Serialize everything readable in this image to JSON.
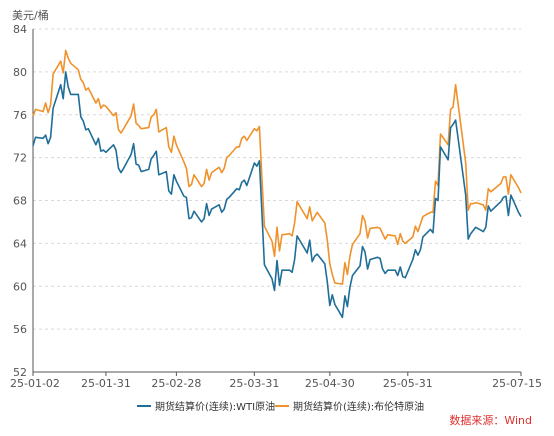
{
  "chart_data": {
    "type": "line",
    "unit_label": "美元/桶",
    "ylim": [
      52,
      84
    ],
    "y_ticks": [
      "84",
      "80",
      "76",
      "72",
      "68",
      "64",
      "60",
      "56",
      "52"
    ],
    "x_ticks": [
      "25-01-02",
      "25-01-31",
      "25-02-28",
      "25-03-31",
      "25-04-30",
      "25-05-31",
      "25-07-15"
    ],
    "xlim": [
      "2025-01-02",
      "2025-07-15"
    ],
    "grid": "horizontal-dashed",
    "legend_position": "bottom",
    "source": "数据来源：Wind",
    "series": [
      {
        "name": "期货结算价(连续):WTI原油",
        "color": "#1f6e99",
        "points": [
          [
            "2025-01-02",
            73.1
          ],
          [
            "2025-01-03",
            73.9
          ],
          [
            "2025-01-06",
            73.8
          ],
          [
            "2025-01-07",
            74.1
          ],
          [
            "2025-01-08",
            73.3
          ],
          [
            "2025-01-09",
            73.9
          ],
          [
            "2025-01-10",
            76.6
          ],
          [
            "2025-01-13",
            78.8
          ],
          [
            "2025-01-14",
            77.5
          ],
          [
            "2025-01-15",
            80.0
          ],
          [
            "2025-01-16",
            78.6
          ],
          [
            "2025-01-17",
            77.9
          ],
          [
            "2025-01-20",
            77.9
          ],
          [
            "2025-01-21",
            75.8
          ],
          [
            "2025-01-22",
            75.4
          ],
          [
            "2025-01-23",
            74.6
          ],
          [
            "2025-01-24",
            74.7
          ],
          [
            "2025-01-27",
            73.2
          ],
          [
            "2025-01-28",
            73.8
          ],
          [
            "2025-01-29",
            72.6
          ],
          [
            "2025-01-30",
            72.7
          ],
          [
            "2025-01-31",
            72.5
          ],
          [
            "2025-02-03",
            73.2
          ],
          [
            "2025-02-04",
            72.7
          ],
          [
            "2025-02-05",
            71.0
          ],
          [
            "2025-02-06",
            70.6
          ],
          [
            "2025-02-07",
            71.0
          ],
          [
            "2025-02-10",
            72.3
          ],
          [
            "2025-02-11",
            73.3
          ],
          [
            "2025-02-12",
            71.4
          ],
          [
            "2025-02-13",
            71.3
          ],
          [
            "2025-02-14",
            70.7
          ],
          [
            "2025-02-17",
            70.9
          ],
          [
            "2025-02-18",
            71.9
          ],
          [
            "2025-02-19",
            72.2
          ],
          [
            "2025-02-20",
            72.6
          ],
          [
            "2025-02-21",
            70.4
          ],
          [
            "2025-02-24",
            70.7
          ],
          [
            "2025-02-25",
            68.9
          ],
          [
            "2025-02-26",
            68.6
          ],
          [
            "2025-02-27",
            70.4
          ],
          [
            "2025-02-28",
            69.8
          ],
          [
            "2025-03-03",
            68.4
          ],
          [
            "2025-03-04",
            68.3
          ],
          [
            "2025-03-05",
            66.3
          ],
          [
            "2025-03-06",
            66.4
          ],
          [
            "2025-03-07",
            67.0
          ],
          [
            "2025-03-10",
            66.0
          ],
          [
            "2025-03-11",
            66.3
          ],
          [
            "2025-03-12",
            67.7
          ],
          [
            "2025-03-13",
            66.6
          ],
          [
            "2025-03-14",
            67.2
          ],
          [
            "2025-03-17",
            67.6
          ],
          [
            "2025-03-18",
            66.9
          ],
          [
            "2025-03-19",
            67.2
          ],
          [
            "2025-03-20",
            68.1
          ],
          [
            "2025-03-21",
            68.3
          ],
          [
            "2025-03-24",
            69.1
          ],
          [
            "2025-03-25",
            69.0
          ],
          [
            "2025-03-26",
            69.7
          ],
          [
            "2025-03-27",
            69.9
          ],
          [
            "2025-03-28",
            69.4
          ],
          [
            "2025-03-31",
            71.5
          ],
          [
            "2025-04-01",
            71.2
          ],
          [
            "2025-04-02",
            71.7
          ],
          [
            "2025-04-03",
            66.9
          ],
          [
            "2025-04-04",
            62.0
          ],
          [
            "2025-04-07",
            60.7
          ],
          [
            "2025-04-08",
            59.6
          ],
          [
            "2025-04-09",
            62.4
          ],
          [
            "2025-04-10",
            60.1
          ],
          [
            "2025-04-11",
            61.5
          ],
          [
            "2025-04-14",
            61.5
          ],
          [
            "2025-04-15",
            61.3
          ],
          [
            "2025-04-16",
            62.5
          ],
          [
            "2025-04-17",
            64.7
          ],
          [
            "2025-04-21",
            63.1
          ],
          [
            "2025-04-22",
            64.3
          ],
          [
            "2025-04-23",
            62.3
          ],
          [
            "2025-04-24",
            62.8
          ],
          [
            "2025-04-25",
            63.0
          ],
          [
            "2025-04-28",
            62.1
          ],
          [
            "2025-04-29",
            60.4
          ],
          [
            "2025-04-30",
            58.2
          ],
          [
            "2025-05-01",
            59.2
          ],
          [
            "2025-05-02",
            58.3
          ],
          [
            "2025-05-05",
            57.1
          ],
          [
            "2025-05-06",
            59.1
          ],
          [
            "2025-05-07",
            58.1
          ],
          [
            "2025-05-08",
            59.9
          ],
          [
            "2025-05-09",
            61.0
          ],
          [
            "2025-05-12",
            61.9
          ],
          [
            "2025-05-13",
            63.7
          ],
          [
            "2025-05-14",
            63.2
          ],
          [
            "2025-05-15",
            61.6
          ],
          [
            "2025-05-16",
            62.5
          ],
          [
            "2025-05-19",
            62.7
          ],
          [
            "2025-05-20",
            62.6
          ],
          [
            "2025-05-21",
            61.6
          ],
          [
            "2025-05-22",
            61.2
          ],
          [
            "2025-05-23",
            61.5
          ],
          [
            "2025-05-26",
            61.5
          ],
          [
            "2025-05-27",
            61.0
          ],
          [
            "2025-05-28",
            61.8
          ],
          [
            "2025-05-29",
            60.9
          ],
          [
            "2025-05-30",
            60.8
          ],
          [
            "2025-06-02",
            62.5
          ],
          [
            "2025-06-03",
            63.4
          ],
          [
            "2025-06-04",
            62.9
          ],
          [
            "2025-06-05",
            63.4
          ],
          [
            "2025-06-06",
            64.6
          ],
          [
            "2025-06-09",
            65.3
          ],
          [
            "2025-06-10",
            65.0
          ],
          [
            "2025-06-11",
            68.2
          ],
          [
            "2025-06-12",
            68.0
          ],
          [
            "2025-06-13",
            73.0
          ],
          [
            "2025-06-16",
            71.8
          ],
          [
            "2025-06-17",
            74.8
          ],
          [
            "2025-06-18",
            75.1
          ],
          [
            "2025-06-19",
            75.5
          ],
          [
            "2025-06-20",
            73.8
          ],
          [
            "2025-06-23",
            68.5
          ],
          [
            "2025-06-24",
            64.4
          ],
          [
            "2025-06-25",
            64.9
          ],
          [
            "2025-06-26",
            65.2
          ],
          [
            "2025-06-27",
            65.5
          ],
          [
            "2025-06-30",
            65.1
          ],
          [
            "2025-07-01",
            65.5
          ],
          [
            "2025-07-02",
            67.5
          ],
          [
            "2025-07-03",
            67.0
          ],
          [
            "2025-07-07",
            67.9
          ],
          [
            "2025-07-08",
            68.3
          ],
          [
            "2025-07-09",
            68.4
          ],
          [
            "2025-07-10",
            66.6
          ],
          [
            "2025-07-11",
            68.5
          ],
          [
            "2025-07-14",
            66.9
          ],
          [
            "2025-07-15",
            66.5
          ]
        ]
      },
      {
        "name": "期货结算价(连续):布伦特原油",
        "color": "#f0922b",
        "points": [
          [
            "2025-01-02",
            75.9
          ],
          [
            "2025-01-03",
            76.5
          ],
          [
            "2025-01-06",
            76.3
          ],
          [
            "2025-01-07",
            77.1
          ],
          [
            "2025-01-08",
            76.2
          ],
          [
            "2025-01-09",
            76.9
          ],
          [
            "2025-01-10",
            79.8
          ],
          [
            "2025-01-13",
            81.0
          ],
          [
            "2025-01-14",
            79.9
          ],
          [
            "2025-01-15",
            82.0
          ],
          [
            "2025-01-16",
            81.3
          ],
          [
            "2025-01-17",
            80.8
          ],
          [
            "2025-01-20",
            80.2
          ],
          [
            "2025-01-21",
            79.3
          ],
          [
            "2025-01-22",
            79.0
          ],
          [
            "2025-01-23",
            78.3
          ],
          [
            "2025-01-24",
            78.5
          ],
          [
            "2025-01-27",
            77.1
          ],
          [
            "2025-01-28",
            77.5
          ],
          [
            "2025-01-29",
            76.6
          ],
          [
            "2025-01-30",
            76.9
          ],
          [
            "2025-01-31",
            76.8
          ],
          [
            "2025-02-03",
            75.9
          ],
          [
            "2025-02-04",
            76.2
          ],
          [
            "2025-02-05",
            74.6
          ],
          [
            "2025-02-06",
            74.3
          ],
          [
            "2025-02-07",
            74.7
          ],
          [
            "2025-02-10",
            75.9
          ],
          [
            "2025-02-11",
            77.0
          ],
          [
            "2025-02-12",
            75.2
          ],
          [
            "2025-02-13",
            75.0
          ],
          [
            "2025-02-14",
            74.7
          ],
          [
            "2025-02-17",
            74.8
          ],
          [
            "2025-02-18",
            75.8
          ],
          [
            "2025-02-19",
            76.0
          ],
          [
            "2025-02-20",
            76.5
          ],
          [
            "2025-02-21",
            74.4
          ],
          [
            "2025-02-24",
            74.8
          ],
          [
            "2025-02-25",
            73.0
          ],
          [
            "2025-02-26",
            72.5
          ],
          [
            "2025-02-27",
            74.0
          ],
          [
            "2025-02-28",
            73.2
          ],
          [
            "2025-03-03",
            71.6
          ],
          [
            "2025-03-04",
            71.0
          ],
          [
            "2025-03-05",
            69.3
          ],
          [
            "2025-03-06",
            69.5
          ],
          [
            "2025-03-07",
            70.4
          ],
          [
            "2025-03-10",
            69.3
          ],
          [
            "2025-03-11",
            69.6
          ],
          [
            "2025-03-12",
            70.9
          ],
          [
            "2025-03-13",
            69.9
          ],
          [
            "2025-03-14",
            70.6
          ],
          [
            "2025-03-17",
            71.1
          ],
          [
            "2025-03-18",
            70.6
          ],
          [
            "2025-03-19",
            71.0
          ],
          [
            "2025-03-20",
            72.0
          ],
          [
            "2025-03-21",
            72.2
          ],
          [
            "2025-03-24",
            73.0
          ],
          [
            "2025-03-25",
            73.0
          ],
          [
            "2025-03-26",
            73.8
          ],
          [
            "2025-03-27",
            74.0
          ],
          [
            "2025-03-28",
            73.6
          ],
          [
            "2025-03-31",
            74.7
          ],
          [
            "2025-04-01",
            74.5
          ],
          [
            "2025-04-02",
            74.9
          ],
          [
            "2025-04-03",
            70.1
          ],
          [
            "2025-04-04",
            65.6
          ],
          [
            "2025-04-07",
            64.2
          ],
          [
            "2025-04-08",
            62.8
          ],
          [
            "2025-04-09",
            65.5
          ],
          [
            "2025-04-10",
            63.3
          ],
          [
            "2025-04-11",
            64.8
          ],
          [
            "2025-04-14",
            64.9
          ],
          [
            "2025-04-15",
            64.7
          ],
          [
            "2025-04-16",
            65.9
          ],
          [
            "2025-04-17",
            67.9
          ],
          [
            "2025-04-21",
            66.3
          ],
          [
            "2025-04-22",
            67.4
          ],
          [
            "2025-04-23",
            66.1
          ],
          [
            "2025-04-24",
            66.5
          ],
          [
            "2025-04-25",
            66.9
          ],
          [
            "2025-04-28",
            65.9
          ],
          [
            "2025-04-29",
            64.3
          ],
          [
            "2025-04-30",
            62.1
          ],
          [
            "2025-05-01",
            61.1
          ],
          [
            "2025-05-02",
            60.3
          ],
          [
            "2025-05-05",
            60.2
          ],
          [
            "2025-05-06",
            62.2
          ],
          [
            "2025-05-07",
            61.1
          ],
          [
            "2025-05-08",
            62.8
          ],
          [
            "2025-05-09",
            63.9
          ],
          [
            "2025-05-12",
            64.9
          ],
          [
            "2025-05-13",
            66.6
          ],
          [
            "2025-05-14",
            66.1
          ],
          [
            "2025-05-15",
            64.5
          ],
          [
            "2025-05-16",
            65.4
          ],
          [
            "2025-05-19",
            65.5
          ],
          [
            "2025-05-20",
            65.4
          ],
          [
            "2025-05-21",
            64.9
          ],
          [
            "2025-05-22",
            64.4
          ],
          [
            "2025-05-23",
            64.8
          ],
          [
            "2025-05-26",
            64.7
          ],
          [
            "2025-05-27",
            63.9
          ],
          [
            "2025-05-28",
            64.9
          ],
          [
            "2025-05-29",
            64.2
          ],
          [
            "2025-05-30",
            64.0
          ],
          [
            "2025-06-02",
            64.6
          ],
          [
            "2025-06-03",
            65.6
          ],
          [
            "2025-06-04",
            65.1
          ],
          [
            "2025-06-05",
            65.8
          ],
          [
            "2025-06-06",
            66.5
          ],
          [
            "2025-06-09",
            66.9
          ],
          [
            "2025-06-10",
            66.9
          ],
          [
            "2025-06-11",
            69.8
          ],
          [
            "2025-06-12",
            69.4
          ],
          [
            "2025-06-13",
            74.2
          ],
          [
            "2025-06-16",
            73.2
          ],
          [
            "2025-06-17",
            76.5
          ],
          [
            "2025-06-18",
            76.7
          ],
          [
            "2025-06-19",
            78.8
          ],
          [
            "2025-06-20",
            77.0
          ],
          [
            "2025-06-23",
            71.5
          ],
          [
            "2025-06-24",
            67.1
          ],
          [
            "2025-06-25",
            67.7
          ],
          [
            "2025-06-26",
            67.7
          ],
          [
            "2025-06-27",
            67.8
          ],
          [
            "2025-06-30",
            67.6
          ],
          [
            "2025-07-01",
            67.1
          ],
          [
            "2025-07-02",
            69.1
          ],
          [
            "2025-07-03",
            68.8
          ],
          [
            "2025-07-07",
            69.6
          ],
          [
            "2025-07-08",
            70.2
          ],
          [
            "2025-07-09",
            70.2
          ],
          [
            "2025-07-10",
            68.6
          ],
          [
            "2025-07-11",
            70.4
          ],
          [
            "2025-07-14",
            69.2
          ],
          [
            "2025-07-15",
            68.7
          ]
        ]
      }
    ]
  }
}
